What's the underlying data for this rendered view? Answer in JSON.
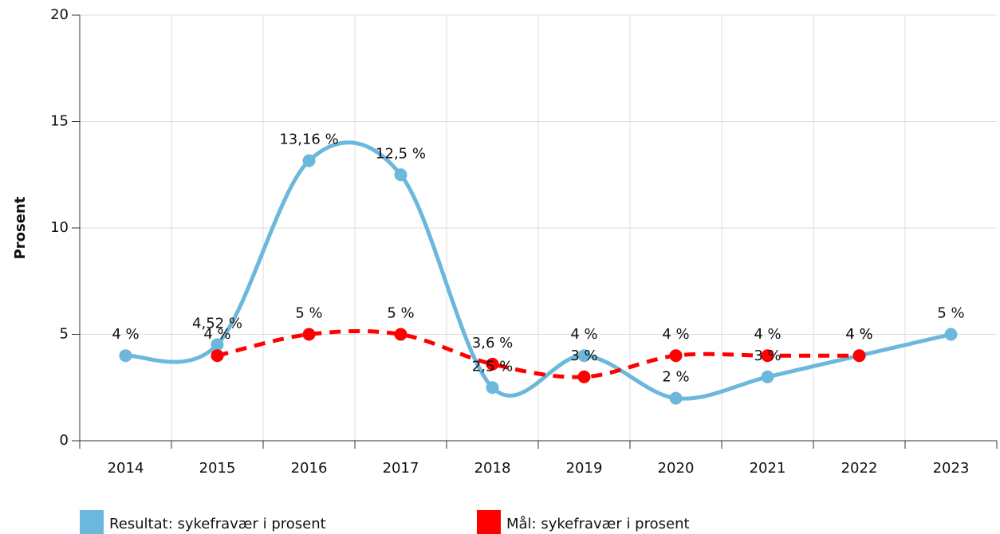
{
  "chart_data": {
    "type": "line",
    "y_label": "Prosent",
    "categories": [
      "2014",
      "2015",
      "2016",
      "2017",
      "2018",
      "2019",
      "2020",
      "2021",
      "2022",
      "2023"
    ],
    "series": [
      {
        "name": "Resultat: sykefravær i prosent",
        "color": "#6cb8dc",
        "dashed": false,
        "values": [
          4,
          4.52,
          13.16,
          12.5,
          2.5,
          4,
          2,
          3,
          4,
          5
        ],
        "value_labels": [
          "4 %",
          "4,52 %",
          "13,16 %",
          "12,5 %",
          "2,5 %",
          "4 %",
          "2 %",
          "3 %",
          "4 %",
          "5 %"
        ]
      },
      {
        "name": "Mål: sykefravær i prosent",
        "color": "#ff0000",
        "dashed": true,
        "values": [
          null,
          4,
          5,
          5,
          3.6,
          3,
          4,
          4,
          4,
          null
        ],
        "value_labels": [
          null,
          "4 %",
          "5 %",
          "5 %",
          "3,6 %",
          "3 %",
          "4 %",
          "4 %",
          "4 %",
          null
        ]
      }
    ],
    "ylim": [
      0,
      20
    ],
    "yticks": [
      0,
      5,
      10,
      15,
      20
    ],
    "grid": true,
    "smooth": true,
    "legend": "bottom"
  }
}
